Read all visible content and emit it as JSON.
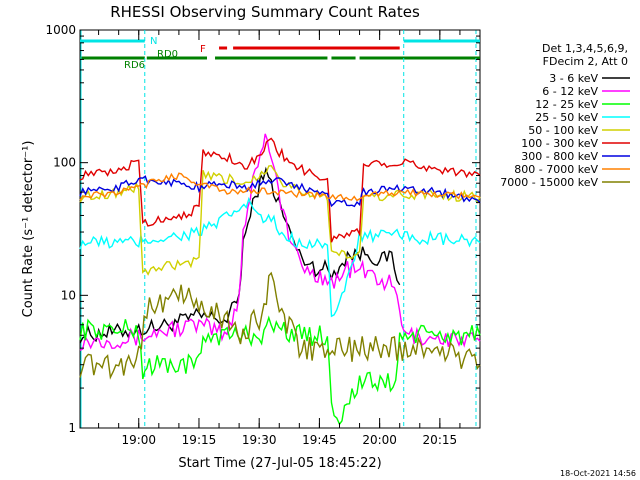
{
  "chart_data": {
    "type": "line",
    "title": "RHESSI Observing Summary Count Rates",
    "xlabel": "Start Time (27-Jul-05 18:45:22)",
    "ylabel": "Count Rate (s⁻¹ detector⁻¹)",
    "y_scale": "log",
    "ylim": [
      1,
      1000
    ],
    "xlim": [
      "18:45:22",
      "20:25:00"
    ],
    "x_ticks": [
      "19:00",
      "19:15",
      "19:30",
      "19:45",
      "20:00",
      "20:15"
    ],
    "y_ticks": [
      "1",
      "10",
      "100",
      "1000"
    ],
    "timestamp": "18-Oct-2021 14:56",
    "legend_header": [
      "Det 1,3,4,5,6,9,",
      "FDecim 2, Att 0"
    ],
    "grid": false,
    "legend_position": "right",
    "flags": [
      {
        "label": "N",
        "color": "#00e5e5",
        "segments": [
          [
            "18:45:22",
            "19:01:30"
          ],
          [
            "20:06:00",
            "20:25:00"
          ]
        ]
      },
      {
        "label": "F",
        "color": "#e00000",
        "segments": [
          [
            "19:20:00",
            "19:22:00"
          ],
          [
            "19:23:30",
            "20:05:00"
          ]
        ]
      },
      {
        "label": "RD0",
        "color": "#008000",
        "segments": [
          [
            "19:02:00",
            "19:17:00"
          ],
          [
            "19:19:00",
            "19:47:00"
          ],
          [
            "19:48:00",
            "19:54:00"
          ],
          [
            "19:55:00",
            "20:25:00"
          ]
        ]
      },
      {
        "label": "RD6",
        "color": "#008000",
        "segments": [
          [
            "18:45:22",
            "19:01:30"
          ]
        ]
      }
    ],
    "series": [
      {
        "name": "3 - 6 keV",
        "color": "#000000",
        "points": [
          [
            "18:45:22",
            5.0
          ],
          [
            "19:00:00",
            5.5
          ],
          [
            "19:07:00",
            6.0
          ],
          [
            "19:15:00",
            7.0
          ],
          [
            "19:22:00",
            6.5
          ],
          [
            "19:25:00",
            10.0
          ],
          [
            "19:26:00",
            25.0
          ],
          [
            "19:29:00",
            55.0
          ],
          [
            "19:31:00",
            85.0
          ],
          [
            "19:33:00",
            70.0
          ],
          [
            "19:36:00",
            40.0
          ],
          [
            "19:40:00",
            20.0
          ],
          [
            "19:44:00",
            16.0
          ],
          [
            "19:47:00",
            16.0
          ],
          [
            "19:48:00",
            14.0
          ],
          [
            "19:52:00",
            20.0
          ],
          [
            "19:57:00",
            21.0
          ],
          [
            "20:00:00",
            18.0
          ],
          [
            "20:03:00",
            20.0
          ],
          [
            "20:05:00",
            12.0
          ]
        ]
      },
      {
        "name": "6 - 12 keV",
        "color": "#ff00ff",
        "points": [
          [
            "18:45:22",
            4.5
          ],
          [
            "19:00:00",
            4.8
          ],
          [
            "19:07:00",
            5.5
          ],
          [
            "19:15:00",
            6.0
          ],
          [
            "19:22:00",
            5.0
          ],
          [
            "19:25:00",
            10.0
          ],
          [
            "19:26:00",
            30.0
          ],
          [
            "19:29:00",
            90.0
          ],
          [
            "19:31:00",
            140.0
          ],
          [
            "19:32:00",
            160.0
          ],
          [
            "19:33:00",
            120.0
          ],
          [
            "19:36:00",
            40.0
          ],
          [
            "19:40:00",
            17.0
          ],
          [
            "19:44:00",
            14.0
          ],
          [
            "19:47:00",
            14.0
          ],
          [
            "19:48:00",
            12.0
          ],
          [
            "19:52:00",
            16.0
          ],
          [
            "19:57:00",
            15.0
          ],
          [
            "20:00:00",
            13.0
          ],
          [
            "20:03:00",
            12.0
          ],
          [
            "20:05:00",
            8.0
          ],
          [
            "20:06:00",
            5.0
          ],
          [
            "20:25:00",
            4.5
          ]
        ]
      },
      {
        "name": "12 - 25 keV",
        "color": "#00ff00",
        "points": [
          [
            "18:45:22",
            5.5
          ],
          [
            "19:00:00",
            5.5
          ],
          [
            "19:01:00",
            2.5
          ],
          [
            "19:02:00",
            3.0
          ],
          [
            "19:15:00",
            3.0
          ],
          [
            "19:16:00",
            5.0
          ],
          [
            "19:30:00",
            5.0
          ],
          [
            "19:33:00",
            6.0
          ],
          [
            "19:40:00",
            5.0
          ],
          [
            "19:47:00",
            5.0
          ],
          [
            "19:48:00",
            1.5
          ],
          [
            "19:50:00",
            1.2
          ],
          [
            "19:55:00",
            2.2
          ],
          [
            "20:04:00",
            2.2
          ],
          [
            "20:05:00",
            5.0
          ],
          [
            "20:25:00",
            5.0
          ]
        ]
      },
      {
        "name": "25 - 50 keV",
        "color": "#00ffff",
        "points": [
          [
            "18:45:22",
            25.0
          ],
          [
            "19:00:00",
            25.0
          ],
          [
            "19:01:00",
            26.0
          ],
          [
            "19:10:00",
            28.0
          ],
          [
            "19:15:00",
            30.0
          ],
          [
            "19:20:00",
            35.0
          ],
          [
            "19:25:00",
            45.0
          ],
          [
            "19:28:00",
            50.0
          ],
          [
            "19:31:00",
            35.0
          ],
          [
            "19:33:00",
            38.0
          ],
          [
            "19:35:00",
            30.0
          ],
          [
            "19:40:00",
            25.0
          ],
          [
            "19:47:00",
            25.0
          ],
          [
            "19:48:00",
            7.0
          ],
          [
            "19:50:00",
            8.0
          ],
          [
            "19:55:00",
            28.0
          ],
          [
            "20:05:00",
            28.0
          ],
          [
            "20:10:00",
            27.0
          ],
          [
            "20:25:00",
            25.0
          ]
        ]
      },
      {
        "name": "50 - 100 keV",
        "color": "#d0d000",
        "points": [
          [
            "18:45:22",
            55.0
          ],
          [
            "18:55:00",
            60.0
          ],
          [
            "19:00:00",
            65.0
          ],
          [
            "19:01:00",
            15.0
          ],
          [
            "19:05:00",
            16.0
          ],
          [
            "19:15:00",
            18.0
          ],
          [
            "19:16:00",
            80.0
          ],
          [
            "19:22:00",
            75.0
          ],
          [
            "19:26:00",
            70.0
          ],
          [
            "19:30:00",
            80.0
          ],
          [
            "19:33:00",
            100.0
          ],
          [
            "19:36:00",
            70.0
          ],
          [
            "19:42:00",
            60.0
          ],
          [
            "19:47:00",
            55.0
          ],
          [
            "19:48:00",
            20.0
          ],
          [
            "19:55:00",
            20.0
          ],
          [
            "19:56:00",
            55.0
          ],
          [
            "20:10:00",
            58.0
          ],
          [
            "20:25:00",
            55.0
          ]
        ]
      },
      {
        "name": "100 - 300 keV",
        "color": "#e00000",
        "points": [
          [
            "18:45:22",
            80.0
          ],
          [
            "18:55:00",
            85.0
          ],
          [
            "19:00:00",
            105.0
          ],
          [
            "19:01:00",
            35.0
          ],
          [
            "19:10:00",
            40.0
          ],
          [
            "19:15:00",
            45.0
          ],
          [
            "19:16:00",
            120.0
          ],
          [
            "19:22:00",
            110.0
          ],
          [
            "19:27:00",
            95.0
          ],
          [
            "19:30:00",
            110.0
          ],
          [
            "19:33:00",
            155.0
          ],
          [
            "19:35:00",
            120.0
          ],
          [
            "19:40:00",
            90.0
          ],
          [
            "19:47:00",
            75.0
          ],
          [
            "19:48:00",
            27.0
          ],
          [
            "19:55:00",
            30.0
          ],
          [
            "19:56:00",
            100.0
          ],
          [
            "20:05:00",
            100.0
          ],
          [
            "20:15:00",
            90.0
          ],
          [
            "20:25:00",
            80.0
          ]
        ]
      },
      {
        "name": "300 - 800 keV",
        "color": "#0000e0",
        "points": [
          [
            "18:45:22",
            60.0
          ],
          [
            "18:55:00",
            65.0
          ],
          [
            "19:00:00",
            75.0
          ],
          [
            "19:01:00",
            75.0
          ],
          [
            "19:10:00",
            70.0
          ],
          [
            "19:15:00",
            65.0
          ],
          [
            "19:20:00",
            70.0
          ],
          [
            "19:27:00",
            65.0
          ],
          [
            "19:33:00",
            75.0
          ],
          [
            "19:40:00",
            65.0
          ],
          [
            "19:47:00",
            60.0
          ],
          [
            "19:48:00",
            50.0
          ],
          [
            "19:55:00",
            50.0
          ],
          [
            "19:56:00",
            60.0
          ],
          [
            "20:05:00",
            65.0
          ],
          [
            "20:15:00",
            60.0
          ],
          [
            "20:25:00",
            50.0
          ]
        ]
      },
      {
        "name": "800 - 7000 keV",
        "color": "#ff8000",
        "points": [
          [
            "18:45:22",
            55.0
          ],
          [
            "18:55:00",
            60.0
          ],
          [
            "19:00:00",
            65.0
          ],
          [
            "19:05:00",
            75.0
          ],
          [
            "19:10:00",
            80.0
          ],
          [
            "19:15:00",
            70.0
          ],
          [
            "19:22:00",
            60.0
          ],
          [
            "19:30:00",
            62.0
          ],
          [
            "19:40:00",
            58.0
          ],
          [
            "19:47:00",
            55.0
          ],
          [
            "19:55:00",
            55.0
          ],
          [
            "20:05:00",
            60.0
          ],
          [
            "20:15:00",
            58.0
          ],
          [
            "20:25:00",
            55.0
          ]
        ]
      },
      {
        "name": "7000 - 15000 keV",
        "color": "#808000",
        "points": [
          [
            "18:45:22",
            3.0
          ],
          [
            "18:55:00",
            3.0
          ],
          [
            "19:00:00",
            3.5
          ],
          [
            "19:02:00",
            8.0
          ],
          [
            "19:08:00",
            10.0
          ],
          [
            "19:15:00",
            9.0
          ],
          [
            "19:20:00",
            7.0
          ],
          [
            "19:26:00",
            5.0
          ],
          [
            "19:30:00",
            7.0
          ],
          [
            "19:33:00",
            13.0
          ],
          [
            "19:35:00",
            8.0
          ],
          [
            "19:40:00",
            4.0
          ],
          [
            "19:47:00",
            4.0
          ],
          [
            "19:50:00",
            3.8
          ],
          [
            "19:55:00",
            4.0
          ],
          [
            "20:05:00",
            4.0
          ],
          [
            "20:15:00",
            4.0
          ],
          [
            "20:25:00",
            3.0
          ]
        ]
      }
    ]
  }
}
